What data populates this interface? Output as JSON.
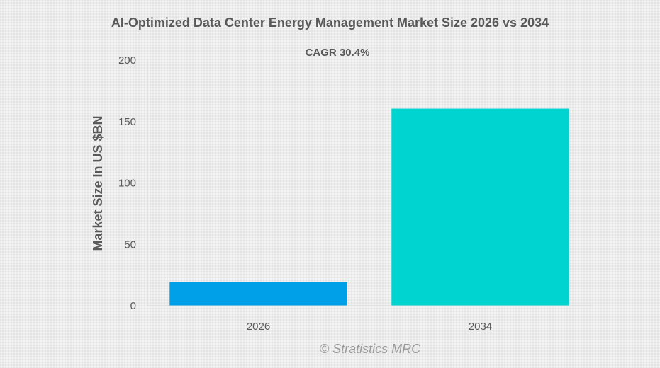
{
  "chart_data": {
    "type": "bar",
    "title": "AI-Optimized Data Center Energy Management Market Size 2026 vs 2034",
    "annotation": "CAGR 30.4%",
    "xlabel": "",
    "ylabel": "Market Size In US $BN",
    "categories": [
      "2026",
      "2034"
    ],
    "values": [
      19.2,
      160.5
    ],
    "colors": [
      "#00a0e9",
      "#00d4d0"
    ],
    "ylim": [
      0,
      200
    ],
    "yticks": [
      0,
      50,
      100,
      150,
      200
    ],
    "ytick_labels": [
      "0",
      "50",
      "100",
      "150",
      "200"
    ],
    "grid": false,
    "legend": "none"
  },
  "watermark": "© Stratistics MRC"
}
